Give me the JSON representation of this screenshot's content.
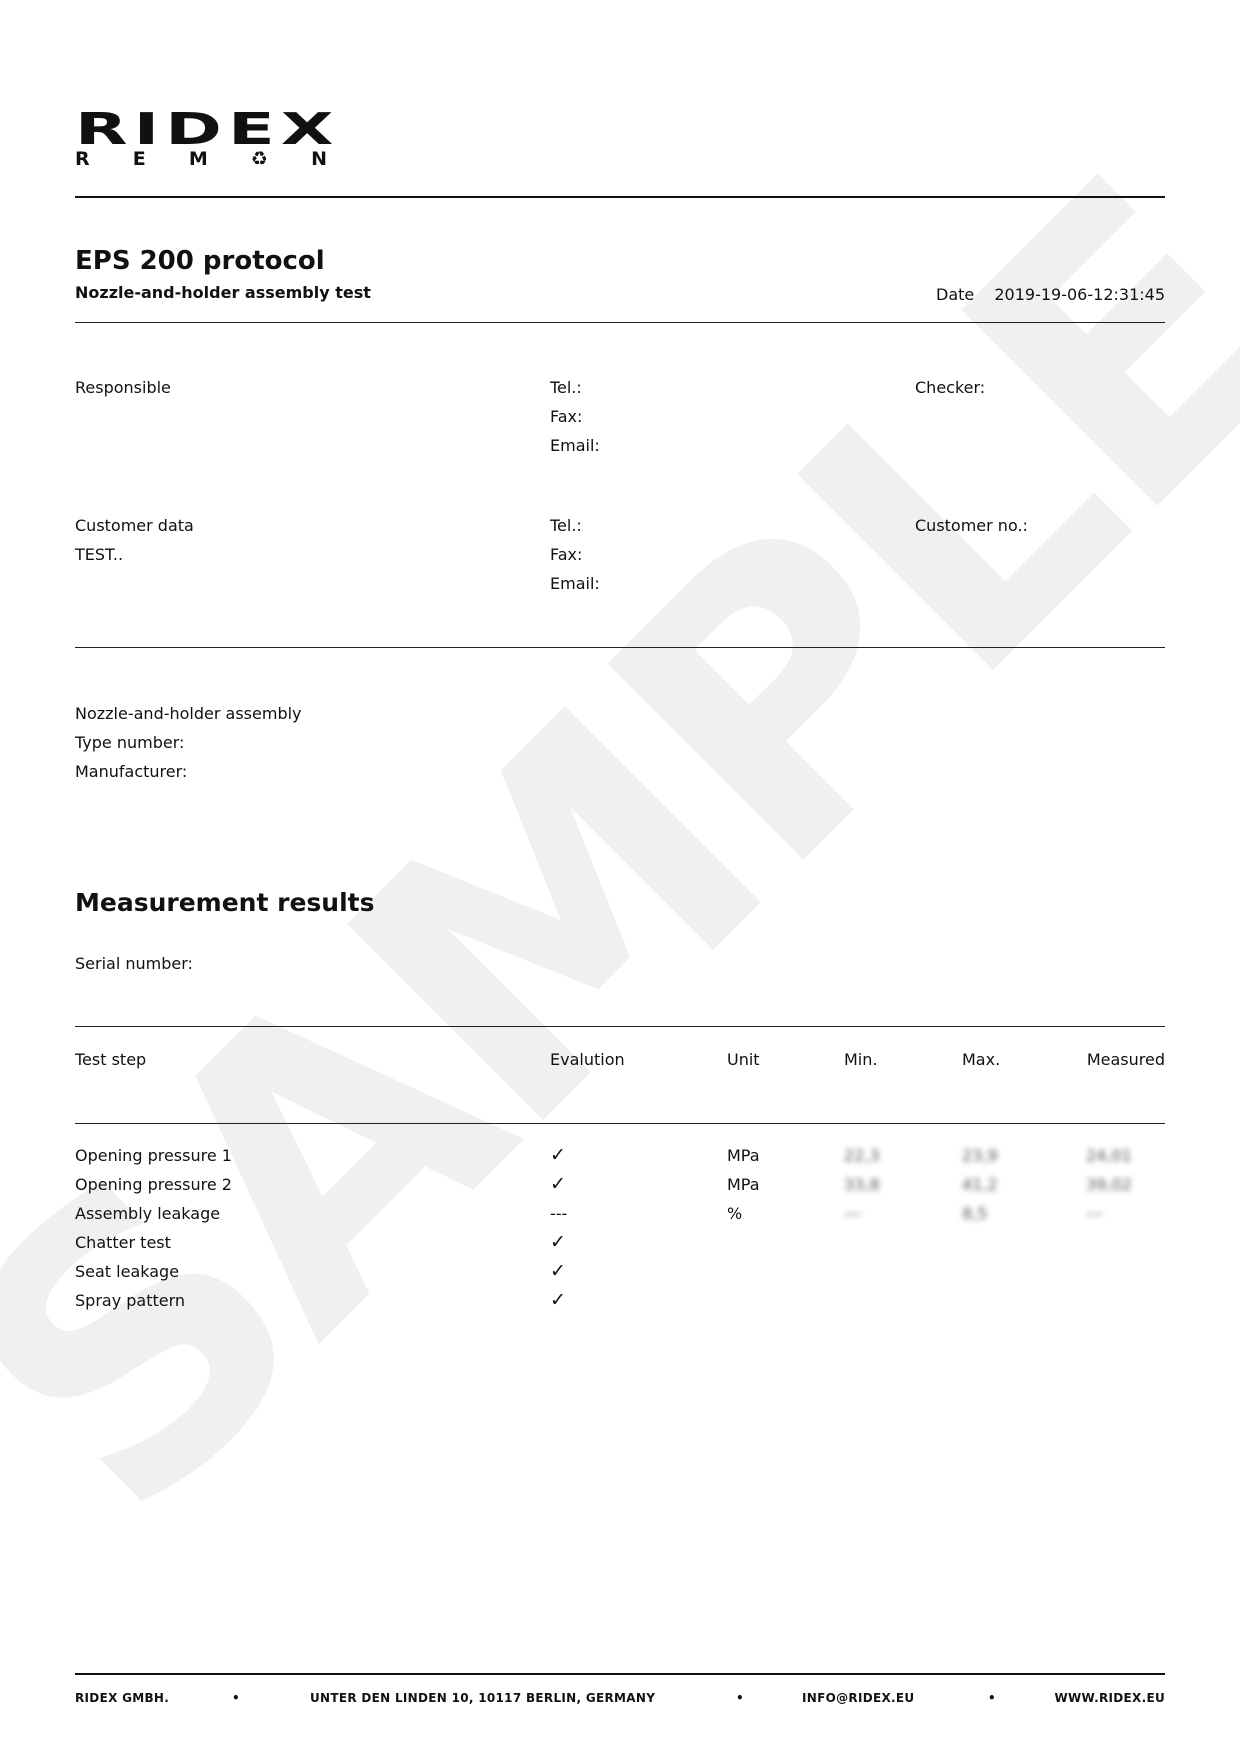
{
  "logo": {
    "top": "RIDEX",
    "bottom": [
      "R",
      "E",
      "M",
      "♻",
      "N"
    ]
  },
  "watermark": "SAMPLE",
  "header": {
    "title": "EPS 200 protocol",
    "subtitle": "Nozzle-and-holder assembly test",
    "date_label": "Date",
    "date_value": "2019-19-06-12:31:45"
  },
  "responsible": {
    "label": "Responsible",
    "tel": "Tel.:",
    "fax": "Fax:",
    "email": "Email:",
    "checker": "Checker:"
  },
  "customer": {
    "label": "Customer data",
    "name": "TEST..",
    "tel": "Tel.:",
    "fax": "Fax:",
    "email": "Email:",
    "customer_no": "Customer no.:"
  },
  "assembly": {
    "label": "Nozzle-and-holder assembly",
    "type": "Type number:",
    "manufacturer": "Manufacturer:"
  },
  "results": {
    "title": "Measurement results",
    "serial": "Serial number:",
    "columns": [
      "Test step",
      "Evalution",
      "Unit",
      "Min.",
      "Max.",
      "Measured"
    ],
    "rows": [
      [
        "Opening pressure 1",
        "✓",
        "MPa",
        "22,3",
        "23,9",
        "24,01"
      ],
      [
        "Opening pressure 2",
        "✓",
        "MPa",
        "33,8",
        "41,2",
        "39,02"
      ],
      [
        "Assembly leakage",
        "---",
        "%",
        "---",
        "8,5",
        "---"
      ],
      [
        "Chatter test",
        "✓",
        "",
        "",
        "",
        ""
      ],
      [
        "Seat leakage",
        "✓",
        "",
        "",
        "",
        ""
      ],
      [
        "Spray pattern",
        "✓",
        "",
        "",
        "",
        ""
      ]
    ]
  },
  "footer": {
    "company": "RIDEX GMBH.",
    "address": "UNTER DEN LINDEN 10, 10117 BERLIN, GERMANY",
    "email": "INFO@RIDEX.EU",
    "web": "WWW.RIDEX.EU",
    "separator": "•"
  }
}
